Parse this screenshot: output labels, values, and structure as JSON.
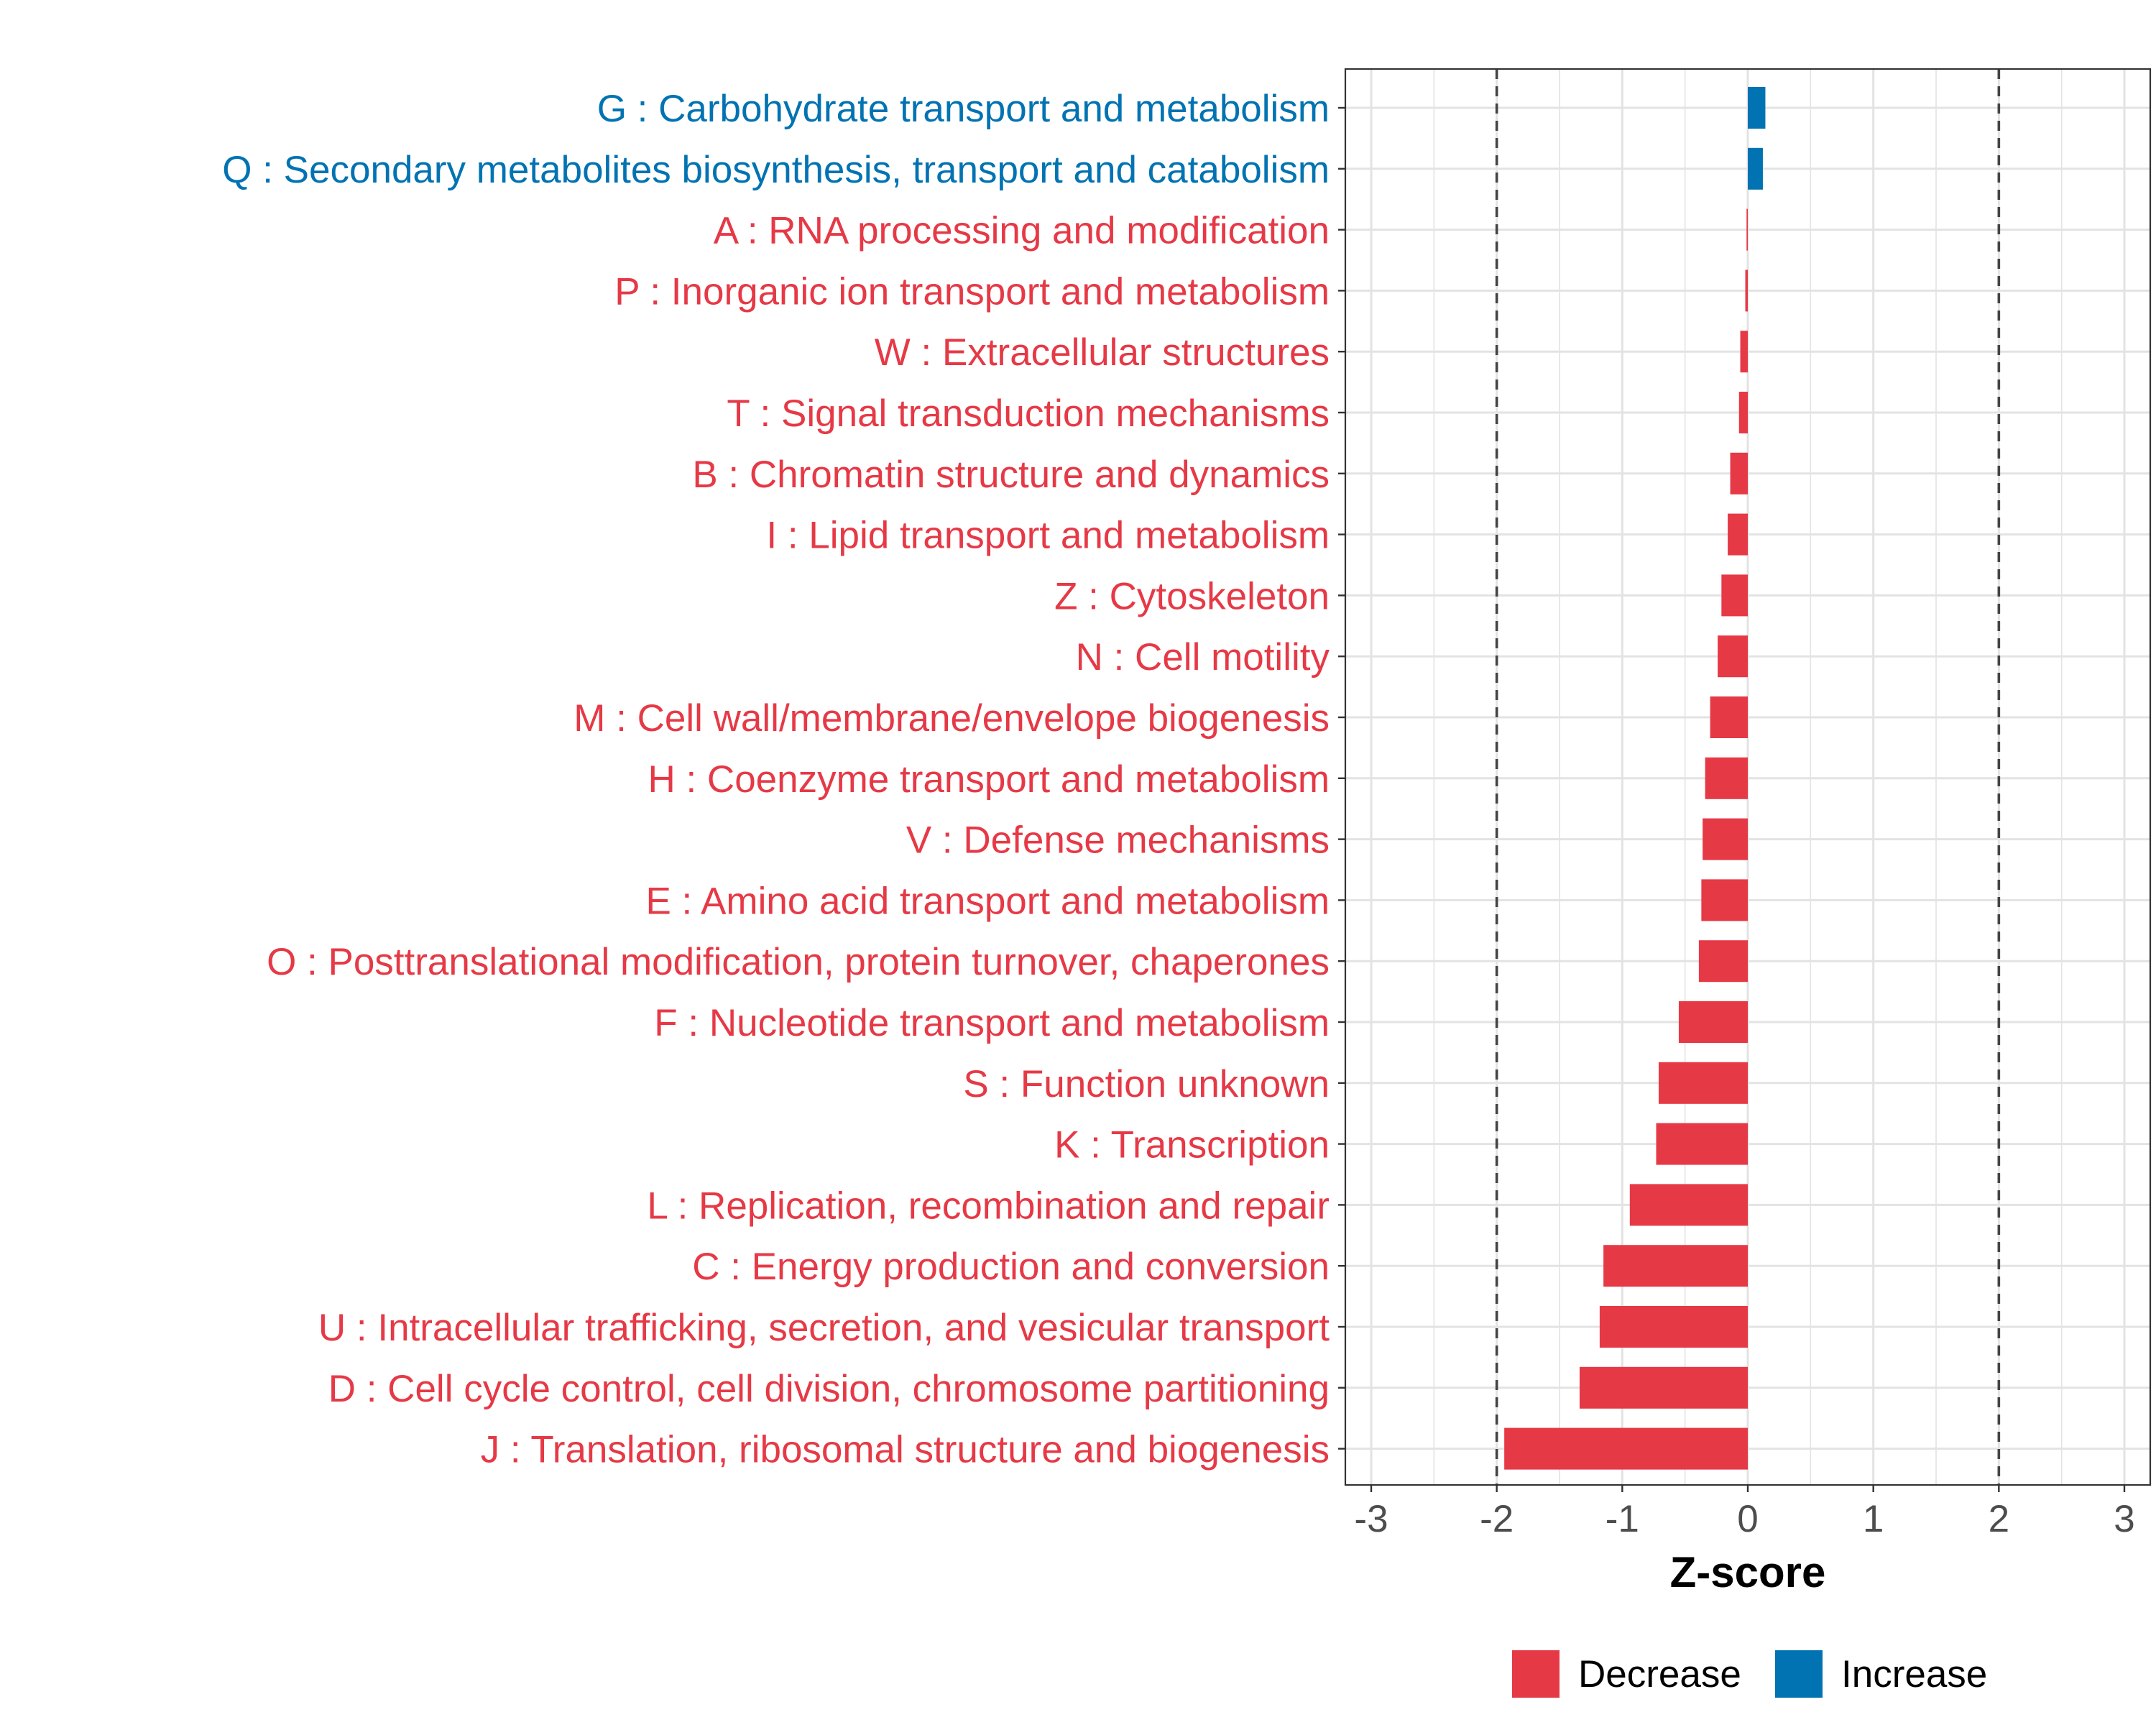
{
  "chart_data": {
    "type": "bar",
    "orientation": "horizontal",
    "title": "",
    "xlabel": "Z-score",
    "ylabel": "",
    "xlim": [
      -3,
      3
    ],
    "xticks": [
      "-3",
      "-2",
      "-1",
      "0",
      "1",
      "2",
      "3"
    ],
    "xtick_values": [
      -3,
      -2,
      -1,
      0,
      1,
      2,
      3
    ],
    "reference_lines": [
      -2,
      2
    ],
    "grid": true,
    "legend_position": "bottom",
    "legend": [
      {
        "label": "Decrease",
        "color": "#E63946"
      },
      {
        "label": "Increase",
        "color": "#0173B2"
      }
    ],
    "categories": [
      "G : Carbohydrate transport and metabolism",
      "Q : Secondary metabolites biosynthesis, transport and catabolism",
      "A : RNA processing and modification",
      "P : Inorganic ion transport and metabolism",
      "W : Extracellular structures",
      "T : Signal transduction mechanisms",
      "B : Chromatin structure and dynamics",
      "I : Lipid transport and metabolism",
      "Z : Cytoskeleton",
      "N : Cell motility",
      "M : Cell wall/membrane/envelope biogenesis",
      "H : Coenzyme transport and metabolism",
      "V : Defense mechanisms",
      "E : Amino acid transport and metabolism",
      "O : Posttranslational modification, protein turnover, chaperones",
      "F : Nucleotide transport and metabolism",
      "S : Function unknown",
      "K : Transcription",
      "L : Replication, recombination and repair",
      "C : Energy production and conversion",
      "U : Intracellular trafficking, secretion, and vesicular transport",
      "D : Cell cycle control, cell division, chromosome partitioning",
      "J : Translation, ribosomal structure and biogenesis"
    ],
    "values": [
      0.14,
      0.12,
      -0.01,
      -0.02,
      -0.06,
      -0.07,
      -0.14,
      -0.16,
      -0.21,
      -0.24,
      -0.3,
      -0.34,
      -0.36,
      -0.37,
      -0.39,
      -0.55,
      -0.71,
      -0.73,
      -0.94,
      -1.15,
      -1.18,
      -1.34,
      -1.94
    ],
    "groups": [
      "Increase",
      "Increase",
      "Decrease",
      "Decrease",
      "Decrease",
      "Decrease",
      "Decrease",
      "Decrease",
      "Decrease",
      "Decrease",
      "Decrease",
      "Decrease",
      "Decrease",
      "Decrease",
      "Decrease",
      "Decrease",
      "Decrease",
      "Decrease",
      "Decrease",
      "Decrease",
      "Decrease",
      "Decrease",
      "Decrease"
    ]
  }
}
